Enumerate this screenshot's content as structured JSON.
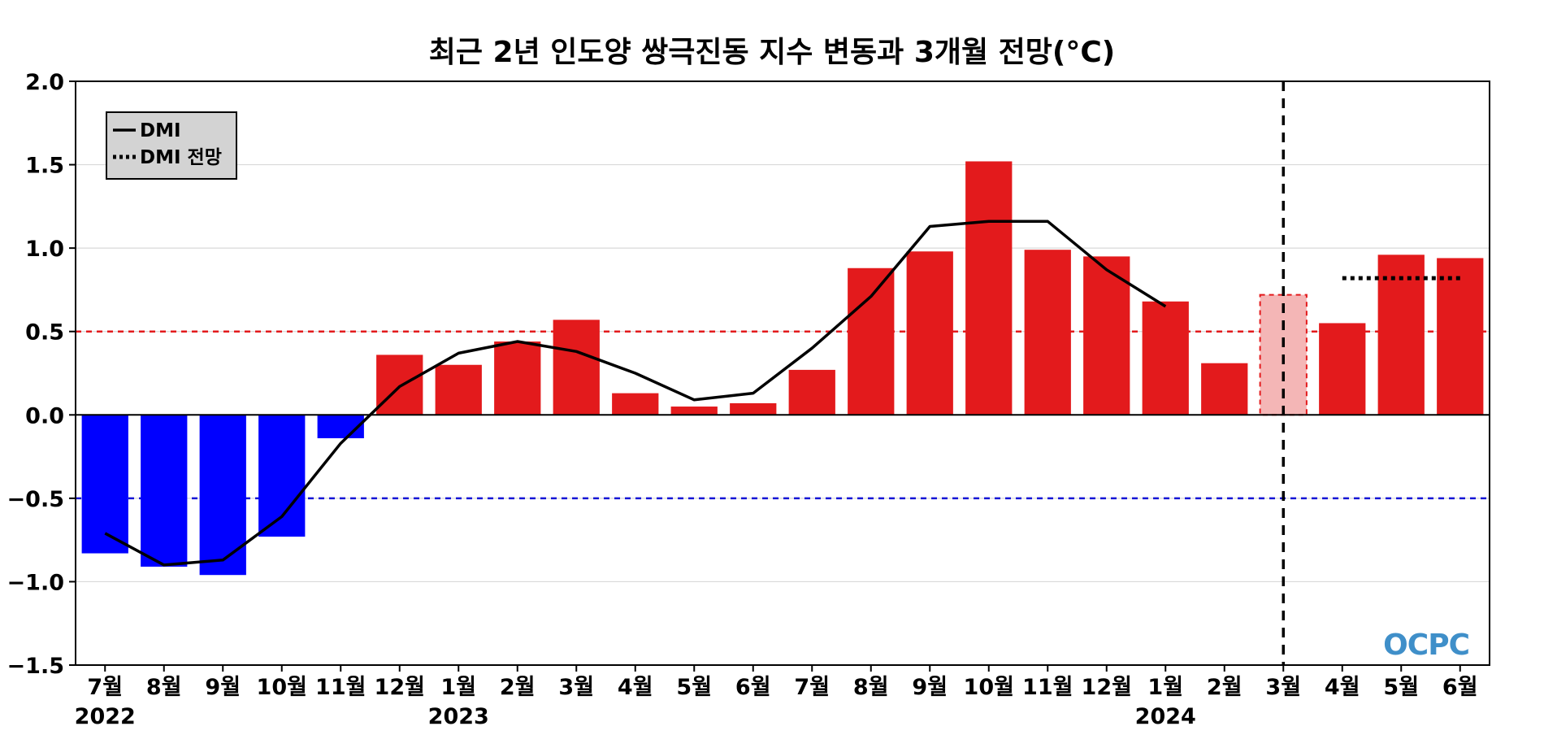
{
  "chart_data": {
    "type": "bar",
    "title": "최근 2년 인도양 쌍극진동 지수 변동과 3개월 전망(°C)",
    "xlabel": "",
    "ylabel": "",
    "ylim": [
      -1.5,
      2.0
    ],
    "yticks": [
      "−1.5",
      "−1.0",
      "−0.5",
      "0.0",
      "0.5",
      "1.0",
      "1.5",
      "2.0"
    ],
    "ytick_values": [
      -1.5,
      -1.0,
      -0.5,
      0.0,
      0.5,
      1.0,
      1.5,
      2.0
    ],
    "categories": [
      "7월",
      "8월",
      "9월",
      "10월",
      "11월",
      "12월",
      "1월",
      "2월",
      "3월",
      "4월",
      "5월",
      "6월",
      "7월",
      "8월",
      "9월",
      "10월",
      "11월",
      "12월",
      "1월",
      "2월",
      "3월",
      "4월",
      "5월",
      "6월"
    ],
    "year_labels": [
      {
        "index": 0,
        "label": "2022"
      },
      {
        "index": 6,
        "label": "2023"
      },
      {
        "index": 18,
        "label": "2024"
      }
    ],
    "grid": "horizontal",
    "series": [
      {
        "name": "",
        "kind": "bar",
        "values": [
          -0.83,
          -0.91,
          -0.96,
          -0.73,
          -0.14,
          0.36,
          0.3,
          0.44,
          0.57,
          0.13,
          0.05,
          0.07,
          0.27,
          0.88,
          0.98,
          1.52,
          0.99,
          0.95,
          0.68,
          0.31,
          0.72,
          0.55,
          0.96,
          0.94
        ],
        "highlight_index": 20
      },
      {
        "name": "DMI",
        "kind": "line",
        "values": [
          -0.71,
          -0.9,
          -0.87,
          -0.61,
          -0.17,
          0.17,
          0.37,
          0.44,
          0.38,
          0.25,
          0.09,
          0.13,
          0.4,
          0.71,
          1.13,
          1.16,
          1.16,
          0.87,
          0.65,
          null,
          null,
          null,
          null,
          null
        ]
      },
      {
        "name": "DMI 전망",
        "kind": "dotted-line",
        "values": [
          null,
          null,
          null,
          null,
          null,
          null,
          null,
          null,
          null,
          null,
          null,
          null,
          null,
          null,
          null,
          null,
          null,
          null,
          null,
          null,
          null,
          0.82,
          0.82,
          0.82
        ]
      }
    ],
    "reference_lines": [
      {
        "value": 0.5,
        "color": "#e31a1c"
      },
      {
        "value": -0.5,
        "color": "#1515d6"
      }
    ],
    "forecast_divider_index": 20,
    "legend_position": "top-left",
    "colors": {
      "positive": "#e31a1c",
      "negative": "#0000ff",
      "highlight_fill": "#f4b6b6",
      "line": "#000000",
      "grid": "#d9d9d9"
    },
    "logo": "OCPC"
  }
}
